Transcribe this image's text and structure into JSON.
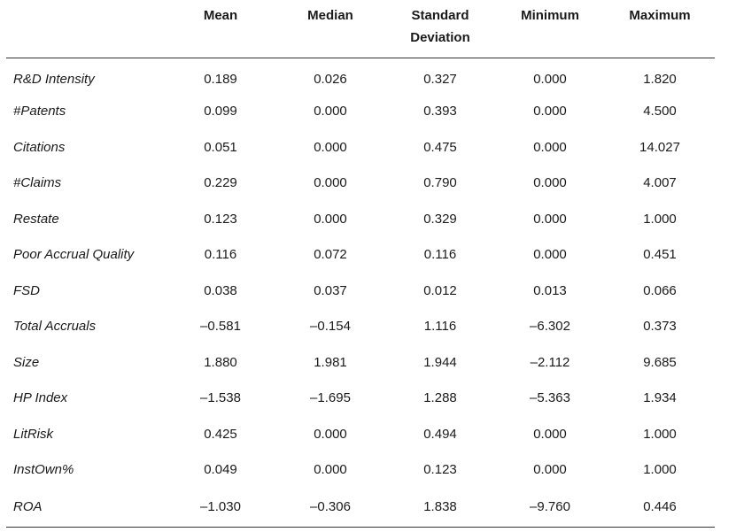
{
  "table": {
    "columns": [
      "Mean",
      "Median",
      "Standard Deviation",
      "Minimum",
      "Maximum"
    ],
    "rows": [
      {
        "label": "R&D Intensity",
        "values": [
          "0.189",
          "0.026",
          "0.327",
          "0.000",
          "1.820"
        ]
      },
      {
        "label": "#Patents",
        "values": [
          "0.099",
          "0.000",
          "0.393",
          "0.000",
          "4.500"
        ]
      },
      {
        "label": "Citations",
        "values": [
          "0.051",
          "0.000",
          "0.475",
          "0.000",
          "14.027"
        ]
      },
      {
        "label": "#Claims",
        "values": [
          "0.229",
          "0.000",
          "0.790",
          "0.000",
          "4.007"
        ]
      },
      {
        "label": "Restate",
        "values": [
          "0.123",
          "0.000",
          "0.329",
          "0.000",
          "1.000"
        ]
      },
      {
        "label": "Poor Accrual Quality",
        "values": [
          "0.116",
          "0.072",
          "0.116",
          "0.000",
          "0.451"
        ]
      },
      {
        "label": "FSD",
        "values": [
          "0.038",
          "0.037",
          "0.012",
          "0.013",
          "0.066"
        ]
      },
      {
        "label": "Total Accruals",
        "values": [
          "–0.581",
          "–0.154",
          "1.116",
          "–6.302",
          "0.373"
        ]
      },
      {
        "label": "Size",
        "values": [
          "1.880",
          "1.981",
          "1.944",
          "–2.112",
          "9.685"
        ]
      },
      {
        "label": "HP Index",
        "values": [
          "–1.538",
          "–1.695",
          "1.288",
          "–5.363",
          "1.934"
        ]
      },
      {
        "label": "LitRisk",
        "values": [
          "0.425",
          "0.000",
          "0.494",
          "0.000",
          "1.000"
        ]
      },
      {
        "label": "InstOwn%",
        "values": [
          "0.049",
          "0.000",
          "0.123",
          "0.000",
          "1.000"
        ]
      },
      {
        "label": "ROA",
        "values": [
          "–1.030",
          "–0.306",
          "1.838",
          "–9.760",
          "0.446"
        ]
      }
    ]
  }
}
